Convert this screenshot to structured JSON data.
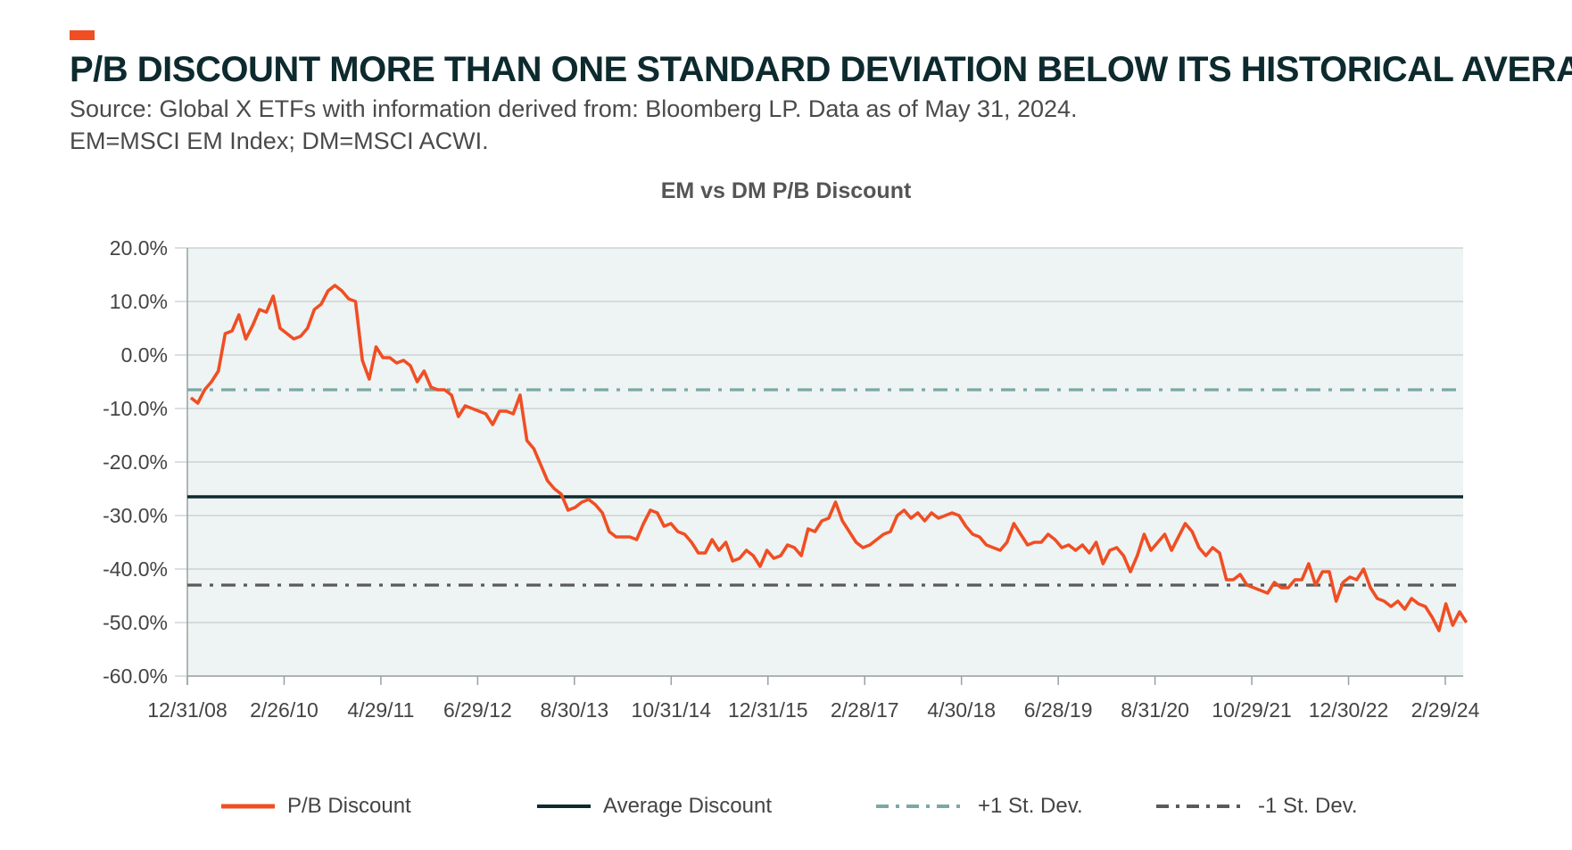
{
  "header": {
    "title": "P/B DISCOUNT MORE THAN ONE STANDARD DEVIATION BELOW ITS HISTORICAL AVERAGE",
    "source_line1": "Source: Global X ETFs with information derived from: Bloomberg LP. Data as of May 31, 2024.",
    "source_line2": "EM=MSCI EM Index; DM=MSCI ACWI.",
    "accent_color": "#f04e23"
  },
  "chart_data": {
    "type": "line",
    "title": "EM vs DM P/B Discount",
    "xlabel": "",
    "ylabel": "",
    "ylim": [
      -60,
      20
    ],
    "yticks": [
      "20.0%",
      "10.0%",
      "0.0%",
      "-10.0%",
      "-20.0%",
      "-30.0%",
      "-40.0%",
      "-50.0%",
      "-60.0%"
    ],
    "ytick_values": [
      20,
      10,
      0,
      -10,
      -20,
      -30,
      -40,
      -50,
      -60
    ],
    "xtick_labels": [
      "12/31/08",
      "2/26/10",
      "4/29/11",
      "6/29/12",
      "8/30/13",
      "10/31/14",
      "12/31/15",
      "2/28/17",
      "4/30/18",
      "6/28/19",
      "8/31/20",
      "10/29/21",
      "12/30/22",
      "2/29/24"
    ],
    "x_count": 186,
    "grid": true,
    "background": "#eef3f3",
    "series": [
      {
        "name": "P/B Discount",
        "color": "#f04e23",
        "style": "solid",
        "values": [
          -8,
          -9,
          -6.5,
          -5,
          -3,
          4,
          4.5,
          7.5,
          3,
          5.5,
          8.5,
          8,
          11,
          5,
          4,
          3,
          3.5,
          5,
          8.5,
          9.5,
          12,
          13,
          12,
          10.5,
          10,
          -1,
          -4.5,
          1.5,
          -0.5,
          -0.5,
          -1.5,
          -1,
          -2,
          -5,
          -3,
          -6,
          -6.5,
          -6.5,
          -7.5,
          -11.5,
          -9.5,
          -10,
          -10.5,
          -11,
          -13,
          -10.5,
          -10.5,
          -11,
          -7.5,
          -16,
          -17.5,
          -20.5,
          -23.5,
          -25,
          -26,
          -29,
          -28.5,
          -27.5,
          -27,
          -28,
          -29.5,
          -33,
          -34,
          -34,
          -34,
          -34.5,
          -31.5,
          -29,
          -29.5,
          -32,
          -31.5,
          -33,
          -33.5,
          -35,
          -37,
          -37,
          -34.5,
          -36.5,
          -35,
          -38.5,
          -38,
          -36.5,
          -37.5,
          -39.5,
          -36.5,
          -38,
          -37.5,
          -35.5,
          -36,
          -37.5,
          -32.5,
          -33,
          -31,
          -30.5,
          -27.5,
          -31,
          -33,
          -35,
          -36,
          -35.5,
          -34.5,
          -33.5,
          -33,
          -30,
          -29,
          -30.5,
          -29.5,
          -31,
          -29.5,
          -30.5,
          -30,
          -29.5,
          -30,
          -32,
          -33.5,
          -34,
          -35.5,
          -36,
          -36.5,
          -35,
          -31.5,
          -33.5,
          -35.5,
          -35,
          -35,
          -33.5,
          -34.5,
          -36,
          -35.5,
          -36.5,
          -35.5,
          -37,
          -35,
          -39,
          -36.5,
          -36,
          -37.5,
          -40.5,
          -37.5,
          -33.5,
          -36.5,
          -35,
          -33.5,
          -36.5,
          -34,
          -31.5,
          -33,
          -36,
          -37.5,
          -36,
          -37,
          -42,
          -42,
          -41,
          -43,
          -43.5,
          -44,
          -44.5,
          -42.5,
          -43.5,
          -43.5,
          -42,
          -42,
          -39,
          -43,
          -40.5,
          -40.5,
          -46,
          -42.5,
          -41.5,
          -42,
          -40,
          -43.5,
          -45.5,
          -46,
          -47,
          -46,
          -47.5,
          -45.5,
          -46.5,
          -47,
          -49,
          -51.5,
          -46.5,
          -50.5,
          -48,
          -50
        ]
      },
      {
        "name": "Average Discount",
        "color": "#0d2a2e",
        "style": "solid",
        "value": -26.5
      },
      {
        "name": "+1 St. Dev.",
        "color": "#7ba8a5",
        "style": "dashdot",
        "value": -6.5
      },
      {
        "name": "-1 St. Dev.",
        "color": "#5a5a5a",
        "style": "dashdot",
        "value": -43
      }
    ],
    "legend": {
      "position": "bottom",
      "items": [
        "P/B Discount",
        "Average Discount",
        "+1 St. Dev.",
        "-1 St. Dev."
      ]
    }
  }
}
